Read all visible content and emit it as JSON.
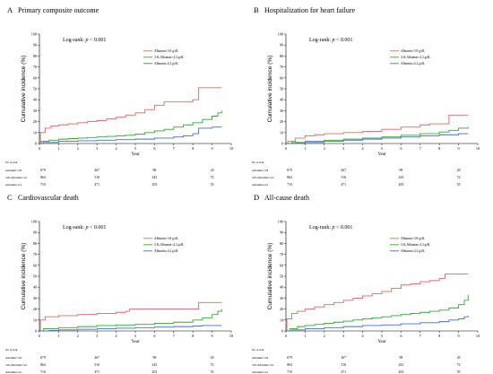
{
  "colors": {
    "low": "#e06666",
    "mid": "#2eaa2e",
    "high": "#3f6fd6",
    "axis": "#000000"
  },
  "chart_data": [
    {
      "type": "line",
      "panel_label": "A",
      "title": "Primary composite outcome",
      "ylabel": "Cumulative incidence (%)",
      "xlabel": "Year",
      "xlim": [
        0,
        10
      ],
      "ylim": [
        0,
        100
      ],
      "xticks": [
        0,
        1,
        2,
        3,
        4,
        5,
        6,
        7,
        8,
        9,
        10
      ],
      "yticks": [
        0,
        10,
        20,
        30,
        40,
        50,
        60,
        70,
        80,
        90,
        100
      ],
      "logrank_prefix": "Log-rank: ",
      "logrank_p": "p",
      "logrank_suffix": " < 0.001",
      "legend": [
        "Albumin<3.8 g/dL",
        "3.8≤Albumin<4.2 g/dL",
        "Albumin≥4.2 g/dL"
      ],
      "series": [
        {
          "name": "Albumin<3.8 g/dL",
          "color_key": "low",
          "x": [
            0,
            0.05,
            0.3,
            0.6,
            1,
            1.5,
            2,
            2.5,
            3,
            3.5,
            4,
            4.5,
            5,
            5.5,
            6,
            6.5,
            7,
            7.5,
            8,
            8.3,
            8.5,
            9,
            9.5
          ],
          "y": [
            0,
            10,
            14,
            16,
            17,
            18,
            19,
            20,
            21,
            22.5,
            24,
            26,
            28,
            31,
            35,
            38,
            38,
            38,
            40,
            51,
            51,
            51,
            51
          ]
        },
        {
          "name": "3.8≤Albumin<4.2 g/dL",
          "color_key": "mid",
          "x": [
            0,
            0.1,
            0.5,
            1,
            1.5,
            2,
            2.5,
            3,
            3.5,
            4,
            4.5,
            5,
            5.5,
            6,
            6.5,
            7,
            7.5,
            8,
            8.5,
            9,
            9.3,
            9.5
          ],
          "y": [
            0,
            2,
            3,
            4,
            4.5,
            5,
            5.5,
            6,
            6.5,
            7,
            7.5,
            8.5,
            10,
            11.5,
            13,
            15,
            17,
            19,
            22,
            25,
            28,
            30
          ]
        },
        {
          "name": "Albumin≥4.2 g/dL",
          "color_key": "high",
          "x": [
            0,
            0.2,
            1,
            2,
            3,
            4,
            5,
            6,
            7,
            7.5,
            8,
            8.3,
            8.5,
            9,
            9.5
          ],
          "y": [
            0,
            1,
            2,
            2.5,
            3,
            3.5,
            4,
            5,
            6,
            7,
            9,
            14,
            14,
            15,
            15
          ]
        }
      ],
      "risk_table": {
        "header": "No at risk",
        "times": [
          0,
          3,
          6,
          9
        ],
        "rows": [
          {
            "label": "Albumin<3.8",
            "values": [
              "679",
              "267",
              "98",
              "20"
            ]
          },
          {
            "label": "3.8≤Albumin<4.2",
            "values": [
              "864",
              "516",
              "243",
              "72"
            ]
          },
          {
            "label": "Albumin≥4.2",
            "values": [
              "710",
              "471",
              "203",
              "55"
            ]
          }
        ]
      }
    },
    {
      "type": "line",
      "panel_label": "B",
      "title": "Hospitalization for heart failure",
      "ylabel": "Cumulative incidence (%)",
      "xlabel": "Year",
      "xlim": [
        0,
        10
      ],
      "ylim": [
        0,
        100
      ],
      "xticks": [
        0,
        1,
        2,
        3,
        4,
        5,
        6,
        7,
        8,
        9,
        10
      ],
      "yticks": [
        0,
        10,
        20,
        30,
        40,
        50,
        60,
        70,
        80,
        90,
        100
      ],
      "logrank_prefix": "Log-rank: ",
      "logrank_p": "p",
      "logrank_suffix": " < 0.001",
      "legend": [
        "Albumin<3.8 g/dL",
        "3.8≤Albumin<4.2 g/dL",
        "Albumin≥4.2 g/dL"
      ],
      "series": [
        {
          "name": "Albumin<3.8 g/dL",
          "color_key": "low",
          "x": [
            0,
            0.1,
            0.5,
            1,
            1.5,
            2,
            3,
            4,
            5,
            6,
            7,
            7.5,
            8,
            8.5,
            9,
            9.5
          ],
          "y": [
            0,
            2,
            5,
            7,
            8,
            9,
            10,
            11,
            13,
            15,
            17,
            18,
            18,
            26,
            26,
            26
          ]
        },
        {
          "name": "3.8≤Albumin<4.2 g/dL",
          "color_key": "mid",
          "x": [
            0,
            0.3,
            1,
            2,
            3,
            4,
            5,
            6,
            7,
            8,
            8.5,
            9,
            9.5
          ],
          "y": [
            0,
            1,
            2,
            3,
            4,
            5,
            6,
            7.5,
            9,
            10.5,
            12,
            14,
            15
          ]
        },
        {
          "name": "Albumin≥4.2 g/dL",
          "color_key": "high",
          "x": [
            0,
            0.5,
            1,
            2,
            3,
            4,
            5,
            6,
            7,
            8,
            9,
            9.5
          ],
          "y": [
            0,
            0.5,
            1,
            2,
            3,
            4,
            5,
            6,
            7,
            8,
            9,
            9
          ]
        }
      ],
      "risk_table": {
        "header": "No at risk",
        "times": [
          0,
          3,
          6,
          9
        ],
        "rows": [
          {
            "label": "Albumin<3.8",
            "values": [
              "679",
              "267",
              "98",
              "20"
            ]
          },
          {
            "label": "3.8≤Albumin<4.2",
            "values": [
              "864",
              "516",
              "243",
              "72"
            ]
          },
          {
            "label": "Albumin≥4.2",
            "values": [
              "710",
              "471",
              "203",
              "55"
            ]
          }
        ]
      }
    },
    {
      "type": "line",
      "panel_label": "C",
      "title": "Cardiovascular death",
      "ylabel": "Cumulative incidence (%)",
      "xlabel": "Year",
      "xlim": [
        0,
        10
      ],
      "ylim": [
        0,
        100
      ],
      "xticks": [
        0,
        1,
        2,
        3,
        4,
        5,
        6,
        7,
        8,
        9,
        10
      ],
      "yticks": [
        0,
        10,
        20,
        30,
        40,
        50,
        60,
        70,
        80,
        90,
        100
      ],
      "logrank_prefix": "Log-rank: ",
      "logrank_p": "p",
      "logrank_suffix": " < 0.001",
      "legend": [
        "Albumin<3.8 g/dL",
        "3.8≤Albumin<4.2 g/dL",
        "Albumin≥4.2 g/dL"
      ],
      "series": [
        {
          "name": "Albumin<3.8 g/dL",
          "color_key": "low",
          "x": [
            0,
            0.05,
            0.3,
            1,
            2,
            3,
            4,
            4.5,
            4.7,
            5,
            6,
            7,
            8,
            8.3,
            9,
            9.5
          ],
          "y": [
            0,
            10,
            13,
            14,
            15,
            16,
            17,
            18,
            20,
            20,
            20,
            20,
            20,
            26,
            26,
            26
          ]
        },
        {
          "name": "3.8≤Albumin<4.2 g/dL",
          "color_key": "mid",
          "x": [
            0,
            0.2,
            1,
            2,
            3,
            4,
            5,
            6,
            7,
            8,
            8.5,
            9,
            9.3,
            9.5
          ],
          "y": [
            0,
            2,
            3,
            4,
            5,
            5.5,
            6,
            7,
            8,
            10,
            12,
            15,
            18,
            20
          ]
        },
        {
          "name": "Albumin≥4.2 g/dL",
          "color_key": "high",
          "x": [
            0,
            0.5,
            1,
            2,
            3,
            4,
            5,
            6,
            7,
            8,
            8.5,
            9,
            9.5
          ],
          "y": [
            0,
            0.5,
            1,
            1.5,
            2,
            2.5,
            3,
            3.5,
            4,
            4.5,
            5,
            5,
            5
          ]
        }
      ],
      "risk_table": {
        "header": "No at risk",
        "times": [
          0,
          3,
          6,
          9
        ],
        "rows": [
          {
            "label": "Albumin<3.8",
            "values": [
              "679",
              "267",
              "98",
              "20"
            ]
          },
          {
            "label": "3.8≤Albumin<4.2",
            "values": [
              "864",
              "516",
              "243",
              "72"
            ]
          },
          {
            "label": "Albumin≥4.2",
            "values": [
              "710",
              "471",
              "203",
              "55"
            ]
          }
        ]
      }
    },
    {
      "type": "line",
      "panel_label": "D",
      "title": "All-cause death",
      "ylabel": "Cumulative incidence (%)",
      "xlabel": "Year",
      "xlim": [
        0,
        10
      ],
      "ylim": [
        0,
        100
      ],
      "xticks": [
        0,
        1,
        2,
        3,
        4,
        5,
        6,
        7,
        8,
        9,
        10
      ],
      "yticks": [
        0,
        10,
        20,
        30,
        40,
        50,
        60,
        70,
        80,
        90,
        100
      ],
      "logrank_prefix": "Log-rank: ",
      "logrank_p": "p",
      "logrank_suffix": " < 0.001",
      "legend": [
        "Albumin<3.8 g/dL",
        "3.8≤Albumin<4.2 g/dL",
        "Albumin≥4.2 g/dL"
      ],
      "series": [
        {
          "name": "Albumin<3.8 g/dL",
          "color_key": "low",
          "x": [
            0,
            0.05,
            0.3,
            0.6,
            1,
            1.5,
            2,
            2.5,
            3,
            3.5,
            4,
            4.5,
            5,
            5.5,
            6,
            6.5,
            7,
            7.5,
            8,
            8.3,
            8.5,
            9,
            9.5
          ],
          "y": [
            0,
            11,
            16,
            18,
            20,
            22,
            24,
            26,
            28,
            30,
            32,
            34,
            36,
            39,
            42,
            43,
            45,
            46,
            48,
            52,
            52,
            52,
            52
          ]
        },
        {
          "name": "3.8≤Albumin<4.2 g/dL",
          "color_key": "mid",
          "x": [
            0,
            0.2,
            0.6,
            1,
            1.5,
            2,
            2.5,
            3,
            3.5,
            4,
            4.5,
            5,
            5.5,
            6,
            6.5,
            7,
            7.5,
            8,
            8.5,
            9,
            9.3,
            9.5
          ],
          "y": [
            0,
            2,
            4,
            5,
            6,
            7,
            8,
            9,
            10,
            11,
            12,
            13,
            14,
            15,
            16,
            17,
            18,
            19,
            21,
            24,
            28,
            33
          ]
        },
        {
          "name": "Albumin≥4.2 g/dL",
          "color_key": "high",
          "x": [
            0,
            0.3,
            1,
            2,
            3,
            4,
            5,
            6,
            7,
            8,
            8.5,
            9,
            9.3,
            9.5
          ],
          "y": [
            0,
            1,
            2,
            3,
            4,
            5,
            5.5,
            6.5,
            7.5,
            8.5,
            10,
            11,
            13,
            14
          ]
        }
      ],
      "risk_table": {
        "header": "No at risk",
        "times": [
          0,
          3,
          6,
          9
        ],
        "rows": [
          {
            "label": "Albumin<3.8",
            "values": [
              "679",
              "267",
              "98",
              "20"
            ]
          },
          {
            "label": "3.8≤Albumin<4.2",
            "values": [
              "864",
              "516",
              "243",
              "72"
            ]
          },
          {
            "label": "Albumin≥4.2",
            "values": [
              "710",
              "471",
              "203",
              "55"
            ]
          }
        ]
      }
    }
  ]
}
